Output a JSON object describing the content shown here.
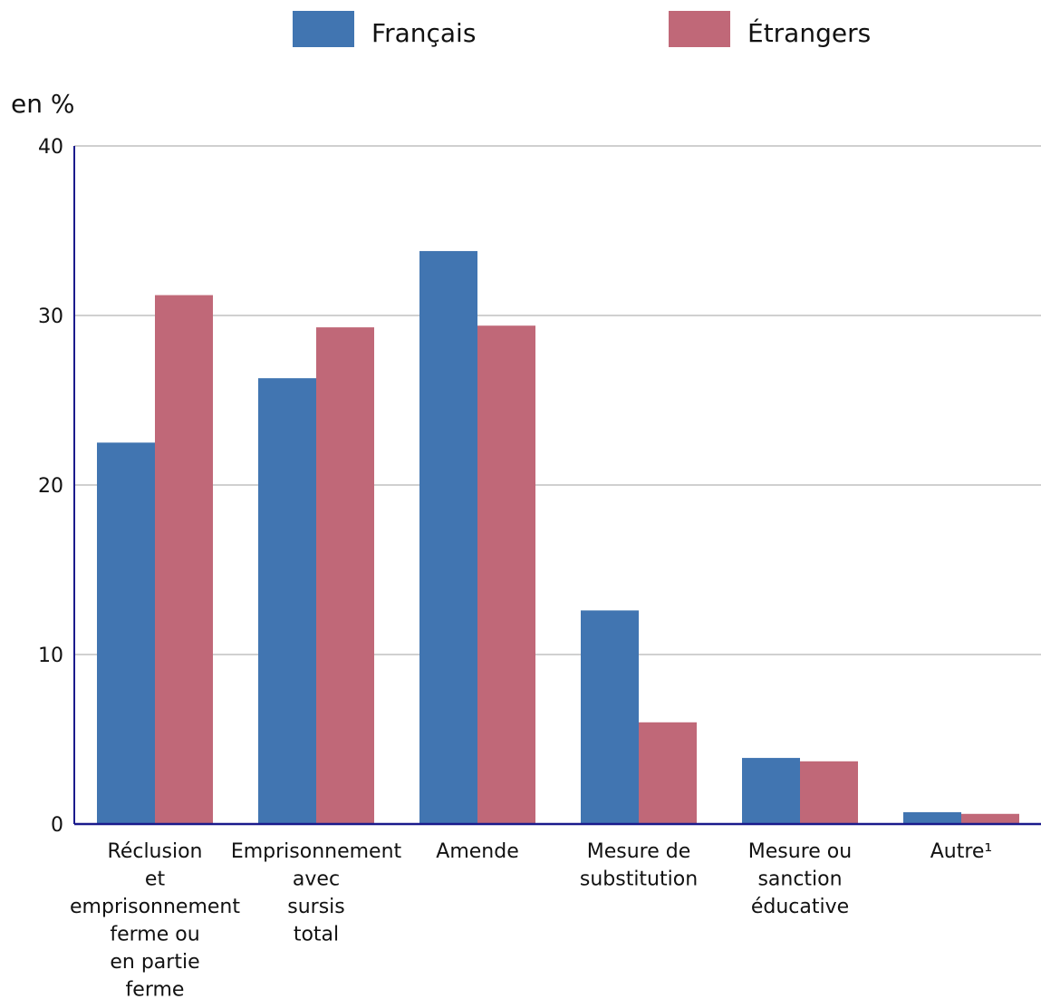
{
  "chart_data": {
    "type": "bar",
    "ylabel": "en %",
    "ylim": [
      0,
      40
    ],
    "yticks": [
      0,
      10,
      20,
      30,
      40
    ],
    "grid": true,
    "legend_position": "top-center",
    "categories": [
      [
        "Réclusion",
        "et",
        "emprisonnement",
        "ferme ou",
        "en partie",
        "ferme"
      ],
      [
        "Emprisonnement",
        "avec",
        "sursis",
        "total"
      ],
      [
        "Amende"
      ],
      [
        "Mesure de",
        "substitution"
      ],
      [
        "Mesure ou",
        "sanction",
        "éducative"
      ],
      [
        "Autre¹"
      ]
    ],
    "series": [
      {
        "name": "Français",
        "color": "#4175b1",
        "values": [
          22.5,
          26.3,
          33.8,
          12.6,
          3.9,
          0.7
        ]
      },
      {
        "name": "Étrangers",
        "color": "#c06878",
        "values": [
          31.2,
          29.3,
          29.4,
          6.0,
          3.7,
          0.6
        ]
      }
    ]
  }
}
